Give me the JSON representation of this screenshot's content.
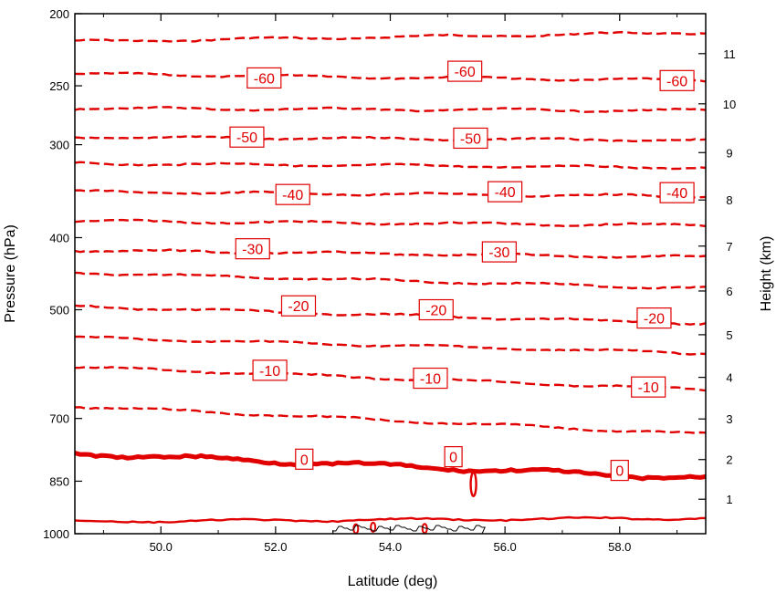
{
  "chart_data": {
    "type": "contour",
    "xlabel": "Latitude (deg)",
    "ylabel_left": "Pressure (hPa)",
    "ylabel_right": "Height (km)",
    "xlim": [
      48.5,
      59.5
    ],
    "pressure_range_hPa": [
      200,
      1000
    ],
    "left_scale": "log-pressure",
    "x_ticks": [
      "50.0",
      "52.0",
      "54.0",
      "56.0",
      "58.0"
    ],
    "x_tick_values": [
      50,
      52,
      54,
      56,
      58
    ],
    "pressure_ticks": [
      "200",
      "250",
      "300",
      "400",
      "500",
      "700",
      "850",
      "1000"
    ],
    "pressure_tick_values": [
      200,
      250,
      300,
      400,
      500,
      700,
      850,
      1000
    ],
    "height_ticks": [
      "1",
      "2",
      "3",
      "4",
      "5",
      "6",
      "7",
      "8",
      "9",
      "10",
      "11"
    ],
    "height_tick_values_km": [
      1,
      2,
      3,
      4,
      5,
      6,
      7,
      8,
      9,
      10,
      11
    ],
    "line_color": "#e00000",
    "terrain_color": "#000000",
    "contours": [
      {
        "level": -65,
        "labeled": false,
        "p_start": 218,
        "p_end": 212
      },
      {
        "level": -60,
        "labeled": true,
        "p_start": 241,
        "p_end": 246,
        "labels": [
          {
            "lat": 51.8,
            "p": 244
          },
          {
            "lat": 55.3,
            "p": 239
          },
          {
            "lat": 59.0,
            "p": 246
          }
        ]
      },
      {
        "level": -55,
        "labeled": false,
        "p_start": 268,
        "p_end": 270
      },
      {
        "level": -50,
        "labeled": true,
        "p_start": 293,
        "p_end": 296,
        "labels": [
          {
            "lat": 51.5,
            "p": 293
          },
          {
            "lat": 55.4,
            "p": 294
          }
        ]
      },
      {
        "level": -45,
        "labeled": false,
        "p_start": 318,
        "p_end": 322
      },
      {
        "level": -40,
        "labeled": true,
        "p_start": 347,
        "p_end": 352,
        "labels": [
          {
            "lat": 52.3,
            "p": 350
          },
          {
            "lat": 56.0,
            "p": 347
          },
          {
            "lat": 59.0,
            "p": 348
          }
        ]
      },
      {
        "level": -35,
        "labeled": false,
        "p_start": 380,
        "p_end": 385
      },
      {
        "level": -30,
        "labeled": true,
        "p_start": 416,
        "p_end": 425,
        "labels": [
          {
            "lat": 51.6,
            "p": 414
          },
          {
            "lat": 55.9,
            "p": 418
          }
        ]
      },
      {
        "level": -25,
        "labeled": false,
        "p_start": 446,
        "p_end": 468
      },
      {
        "level": -20,
        "labeled": true,
        "p_start": 495,
        "p_end": 522,
        "labels": [
          {
            "lat": 52.4,
            "p": 494
          },
          {
            "lat": 54.8,
            "p": 500
          },
          {
            "lat": 58.6,
            "p": 513
          }
        ]
      },
      {
        "level": -15,
        "labeled": false,
        "p_start": 545,
        "p_end": 572
      },
      {
        "level": -10,
        "labeled": true,
        "p_start": 597,
        "p_end": 640,
        "labels": [
          {
            "lat": 51.9,
            "p": 603
          },
          {
            "lat": 54.7,
            "p": 618
          },
          {
            "lat": 58.5,
            "p": 635
          }
        ]
      },
      {
        "level": -5,
        "labeled": false,
        "p_start": 674,
        "p_end": 735
      },
      {
        "level": 0,
        "labeled": true,
        "p_start": 780,
        "p_end": 843,
        "labels": [
          {
            "lat": 52.5,
            "p": 794
          },
          {
            "lat": 55.1,
            "p": 788
          },
          {
            "lat": 58.0,
            "p": 822
          }
        ]
      },
      {
        "level": 5,
        "labeled": false,
        "p_start": 963,
        "p_end": 953
      }
    ],
    "contour_labels": [
      "-60",
      "-60",
      "-60",
      "-50",
      "-50",
      "-40",
      "-40",
      "-40",
      "-30",
      "-30",
      "-20",
      "-20",
      "-20",
      "-10",
      "-10",
      "-10",
      "0",
      "0",
      "0"
    ],
    "terrain": {
      "lat_start": 53.0,
      "lat_end": 55.6
    }
  }
}
